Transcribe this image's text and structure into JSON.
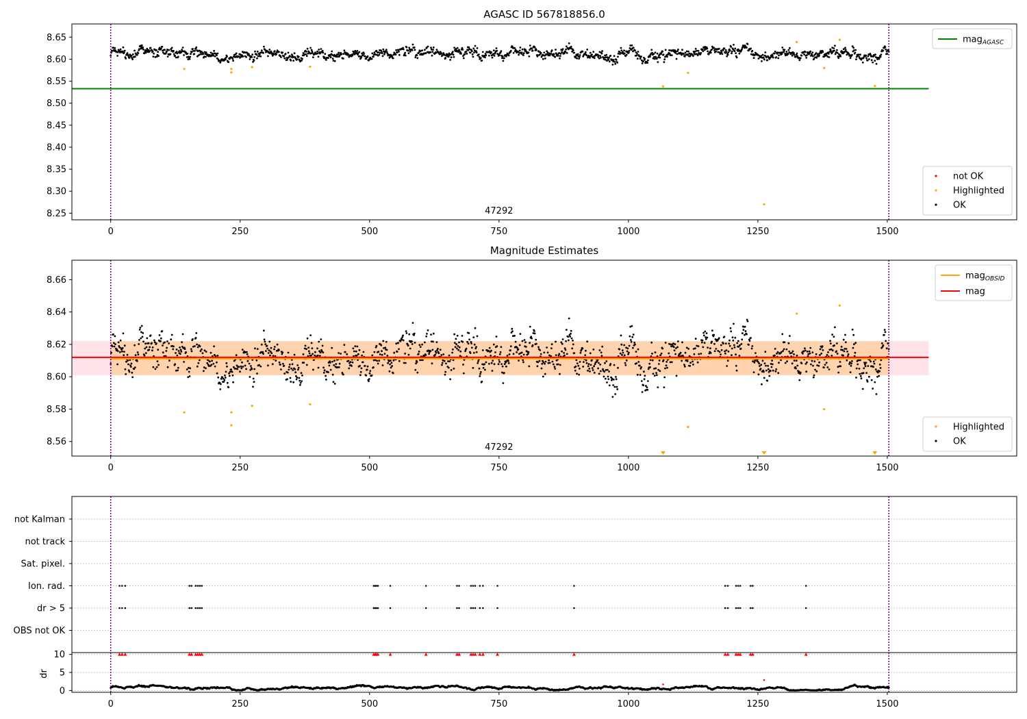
{
  "chart_data": [
    {
      "type": "scatter",
      "title": "AGASC ID 567818856.0",
      "xlim": [
        -75,
        1750
      ],
      "ylim": [
        8.235,
        8.68
      ],
      "xticks": [
        0,
        250,
        500,
        750,
        1000,
        1250,
        1500
      ],
      "yticks": [
        8.25,
        8.3,
        8.35,
        8.4,
        8.45,
        8.5,
        8.55,
        8.6,
        8.65
      ],
      "ytick_labels": [
        "8.25",
        "8.30",
        "8.35",
        "8.40",
        "8.45",
        "8.50",
        "8.55",
        "8.60",
        "8.65"
      ],
      "obsid_label": {
        "text": "47292",
        "x": 750
      },
      "vlines": [
        0,
        1503
      ],
      "hlines": [
        {
          "name": "mag_AGASC",
          "label_main": "mag",
          "label_sub": "AGASC",
          "y": 8.533,
          "x0": -75,
          "x1": 1580,
          "color": "#008000"
        }
      ],
      "legend_lines": [
        {
          "label_main": "mag",
          "label_sub": "AGASC",
          "color": "#008000"
        }
      ],
      "legend_points": [
        {
          "label": "not OK",
          "color": "#ff0000"
        },
        {
          "label": "Highlighted",
          "color": "#ffa500"
        },
        {
          "label": "OK",
          "color": "#000000"
        }
      ],
      "series": [
        {
          "name": "OK",
          "color": "#000000",
          "n": 1500,
          "x_range": [
            0,
            1503
          ],
          "level": 8.612,
          "noise": 0.0085
        },
        {
          "name": "Highlighted",
          "color": "#ffa500",
          "points": [
            [
              142,
              8.578
            ],
            [
              233,
              8.57
            ],
            [
              233,
              8.578
            ],
            [
              273,
              8.582
            ],
            [
              385,
              8.583
            ],
            [
              1067,
              8.538
            ],
            [
              1115,
              8.569
            ],
            [
              1262,
              8.27
            ],
            [
              1325,
              8.639
            ],
            [
              1378,
              8.58
            ],
            [
              1408,
              8.644
            ],
            [
              1476,
              8.539
            ]
          ]
        }
      ],
      "legend_position": "lower-right"
    },
    {
      "type": "scatter",
      "title": "Magnitude Estimates",
      "xlim": [
        -75,
        1750
      ],
      "ylim": [
        8.551,
        8.672
      ],
      "xticks": [
        0,
        250,
        500,
        750,
        1000,
        1250,
        1500
      ],
      "yticks": [
        8.56,
        8.58,
        8.6,
        8.62,
        8.64,
        8.66
      ],
      "ytick_labels": [
        "8.56",
        "8.58",
        "8.60",
        "8.62",
        "8.64",
        "8.66"
      ],
      "obsid_label": {
        "text": "47292",
        "x": 750
      },
      "vlines": [
        0,
        1503
      ],
      "bands": [
        {
          "y0": 8.601,
          "y1": 8.622,
          "x0": -75,
          "x1": 1580,
          "color": "#ffc0cb",
          "opacity": 0.45
        },
        {
          "y0": 8.601,
          "y1": 8.622,
          "x0": 0,
          "x1": 1503,
          "color": "#ffa500",
          "opacity": 0.25
        }
      ],
      "hlines": [
        {
          "name": "mag",
          "y": 8.612,
          "x0": -75,
          "x1": 1580,
          "color": "#ff0000"
        },
        {
          "name": "mag_OBSID",
          "y": 8.612,
          "x0": 0,
          "x1": 1503,
          "color": "#ffa500"
        }
      ],
      "legend_lines": [
        {
          "label_main": "mag",
          "label_sub": "OBSID",
          "color": "#ffa500"
        },
        {
          "label_main": "mag",
          "label_sub": "",
          "color": "#ff0000"
        }
      ],
      "legend_points": [
        {
          "label": "Highlighted",
          "color": "#ffa500"
        },
        {
          "label": "OK",
          "color": "#000000"
        }
      ],
      "series": [
        {
          "name": "OK",
          "color": "#000000",
          "n": 1500,
          "x_range": [
            0,
            1503
          ],
          "level": 8.612,
          "noise": 0.0085
        },
        {
          "name": "Highlighted",
          "color": "#ffa500",
          "points": [
            [
              142,
              8.578
            ],
            [
              233,
              8.57
            ],
            [
              233,
              8.578
            ],
            [
              273,
              8.582
            ],
            [
              385,
              8.583
            ],
            [
              1115,
              8.569
            ],
            [
              1325,
              8.639
            ],
            [
              1378,
              8.58
            ],
            [
              1408,
              8.644
            ]
          ]
        },
        {
          "name": "Highlighted (below range)",
          "color": "#ffa500",
          "marker": "triangle-down",
          "points": [
            [
              1067,
              8.552
            ],
            [
              1262,
              8.552
            ],
            [
              1476,
              8.552
            ]
          ]
        }
      ],
      "legend_position": "lower-right"
    },
    {
      "type": "scatter",
      "title": "",
      "xlim": [
        -75,
        1750
      ],
      "xticks": [
        0,
        250,
        500,
        750,
        1000,
        1250,
        1500
      ],
      "vlines": [
        0,
        1503
      ],
      "flag_categories": [
        "not Kalman",
        "not track",
        "Sat. pixel.",
        "Ion. rad.",
        "dr > 5",
        "OBS not OK"
      ],
      "flag_points": {
        "Ion. rad.": [
          17,
          22,
          28,
          152,
          156,
          164,
          168,
          172,
          176,
          508,
          511,
          513,
          516,
          540,
          609,
          669,
          673,
          696,
          700,
          704,
          713,
          719,
          747,
          895,
          1187,
          1192,
          1208,
          1212,
          1216,
          1236,
          1240,
          1343
        ],
        "dr > 5": [
          17,
          22,
          28,
          152,
          156,
          164,
          168,
          172,
          176,
          508,
          511,
          513,
          516,
          540,
          609,
          669,
          673,
          696,
          700,
          704,
          713,
          719,
          747,
          895,
          1187,
          1192,
          1208,
          1212,
          1216,
          1236,
          1240,
          1343
        ]
      },
      "dr_panel": {
        "ylabel": "dr",
        "ylim": [
          -0.5,
          10.5
        ],
        "yticks": [
          0,
          5,
          10
        ],
        "ytick_labels": [
          "0",
          "5",
          "10"
        ],
        "ok_series": {
          "color": "#000000",
          "n": 1500,
          "x_range": [
            0,
            1503
          ],
          "level": 0.7,
          "noise": 0.45
        },
        "not_ok_points": {
          "color": "#ff0000",
          "marker": "triangle-up",
          "y": 10,
          "x": [
            17,
            22,
            28,
            152,
            156,
            164,
            168,
            172,
            176,
            508,
            511,
            513,
            516,
            540,
            609,
            669,
            673,
            696,
            700,
            704,
            713,
            719,
            747,
            895,
            1187,
            1192,
            1208,
            1212,
            1216,
            1236,
            1240,
            1343
          ]
        },
        "highlighted_points": [
          [
            1262,
            2.9
          ],
          [
            1067,
            1.7
          ]
        ]
      }
    }
  ]
}
